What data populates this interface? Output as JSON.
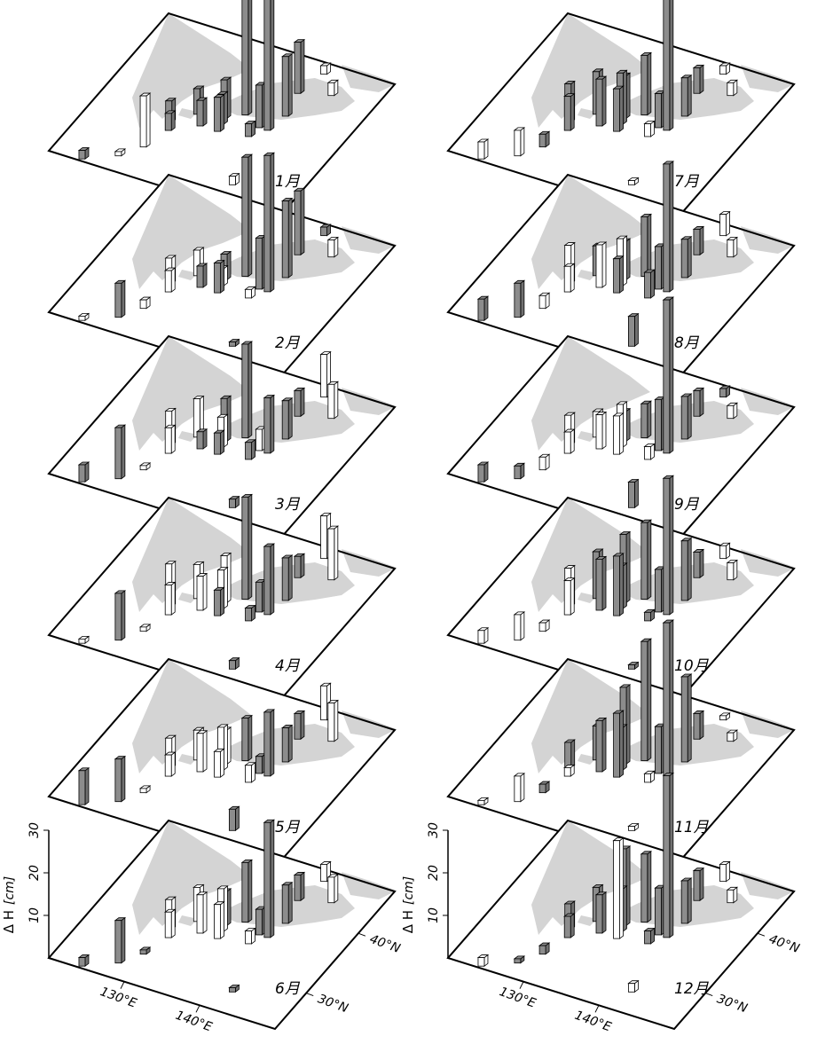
{
  "chart_data": {
    "type": "bar3d-map",
    "zlabel": "Δ H",
    "zunit": "[cm]",
    "zlim": [
      0,
      30
    ],
    "zticks": [
      10,
      20,
      30
    ],
    "xlim": [
      120,
      150
    ],
    "xticks": [
      {
        "value": 130,
        "label": "130°E"
      },
      {
        "value": 140,
        "label": "140°E"
      }
    ],
    "ylim": [
      24,
      47
    ],
    "yticks": [
      {
        "value": 30,
        "label": "30°N"
      },
      {
        "value": 40,
        "label": "40°N"
      }
    ],
    "colors": {
      "positive": "#8c8c8c",
      "negative": "#ffffff",
      "land": "#d4d4d4"
    },
    "stations": {
      "lon": [
        124.2,
        127.7,
        129.5,
        142.2,
        130.6,
        129.9,
        133.5,
        135.8,
        135.5,
        137.2,
        135.3,
        139.8,
        140.9,
        141.5,
        140.7,
        144.4,
        141.7,
        132.1,
        139.5
      ],
      "lat": [
        24.3,
        26.2,
        28.4,
        27.1,
        31.6,
        32.7,
        33.5,
        33.5,
        34.6,
        36.8,
        35.5,
        35.7,
        35.7,
        38.3,
        41.8,
        42.9,
        45.4,
        34.9,
        34.1
      ]
    },
    "panels": [
      {
        "label": "1月",
        "values": [
          2,
          -1,
          -12,
          -2,
          4,
          5,
          6,
          8,
          7,
          30,
          9,
          10,
          34,
          14,
          12,
          -3,
          -2,
          6,
          3
        ]
      },
      {
        "label": "2月",
        "values": [
          -1,
          8,
          -2,
          1,
          -5,
          -6,
          5,
          7,
          -4,
          28,
          6,
          12,
          32,
          18,
          15,
          -4,
          2,
          -6,
          -2
        ]
      },
      {
        "label": "3月",
        "values": [
          4,
          12,
          -1,
          2,
          -6,
          -8,
          4,
          5,
          -7,
          22,
          10,
          -5,
          13,
          9,
          6,
          -8,
          -10,
          -9,
          4
        ]
      },
      {
        "label": "4月",
        "values": [
          -1,
          11,
          -1,
          2,
          -7,
          -10,
          -8,
          6,
          -9,
          24,
          -11,
          7,
          16,
          10,
          5,
          -12,
          -10,
          -8,
          3
        ]
      },
      {
        "label": "5月",
        "values": [
          8,
          10,
          -1,
          5,
          -5,
          -7,
          -9,
          -6,
          -10,
          10,
          -8,
          4,
          15,
          8,
          6,
          -9,
          -8,
          -7,
          -4
        ]
      },
      {
        "label": "6月",
        "values": [
          2,
          10,
          1,
          1,
          -6,
          -7,
          -9,
          -8,
          -10,
          14,
          8,
          6,
          27,
          9,
          6,
          -6,
          -4,
          -8,
          -3
        ]
      },
      {
        "label": "7月",
        "values": [
          -4,
          -6,
          3,
          -1,
          8,
          9,
          11,
          10,
          12,
          14,
          10,
          8,
          31,
          9,
          6,
          -3,
          -2,
          10,
          -3
        ]
      },
      {
        "label": "8月",
        "values": [
          5,
          8,
          -3,
          7,
          -6,
          -9,
          -10,
          8,
          -11,
          14,
          9,
          10,
          30,
          9,
          6,
          -4,
          -5,
          7,
          6
        ]
      },
      {
        "label": "9月",
        "values": [
          4,
          3,
          -3,
          6,
          -5,
          -7,
          -8,
          -9,
          -10,
          8,
          7,
          12,
          36,
          10,
          6,
          -3,
          2,
          -6,
          -3
        ]
      },
      {
        "label": "10月",
        "values": [
          -3,
          -6,
          -2,
          1,
          -8,
          -9,
          12,
          14,
          10,
          18,
          16,
          10,
          32,
          14,
          6,
          -4,
          -3,
          11,
          2
        ]
      },
      {
        "label": "11月",
        "values": [
          -1,
          -6,
          2,
          -1,
          -2,
          6,
          12,
          15,
          10,
          28,
          18,
          11,
          36,
          20,
          6,
          -2,
          -1,
          8,
          -2
        ]
      },
      {
        "label": "12月",
        "values": [
          -2,
          1,
          2,
          -2,
          5,
          6,
          9,
          -23,
          10,
          16,
          18,
          11,
          38,
          10,
          7,
          -3,
          -4,
          8,
          3
        ]
      }
    ]
  }
}
